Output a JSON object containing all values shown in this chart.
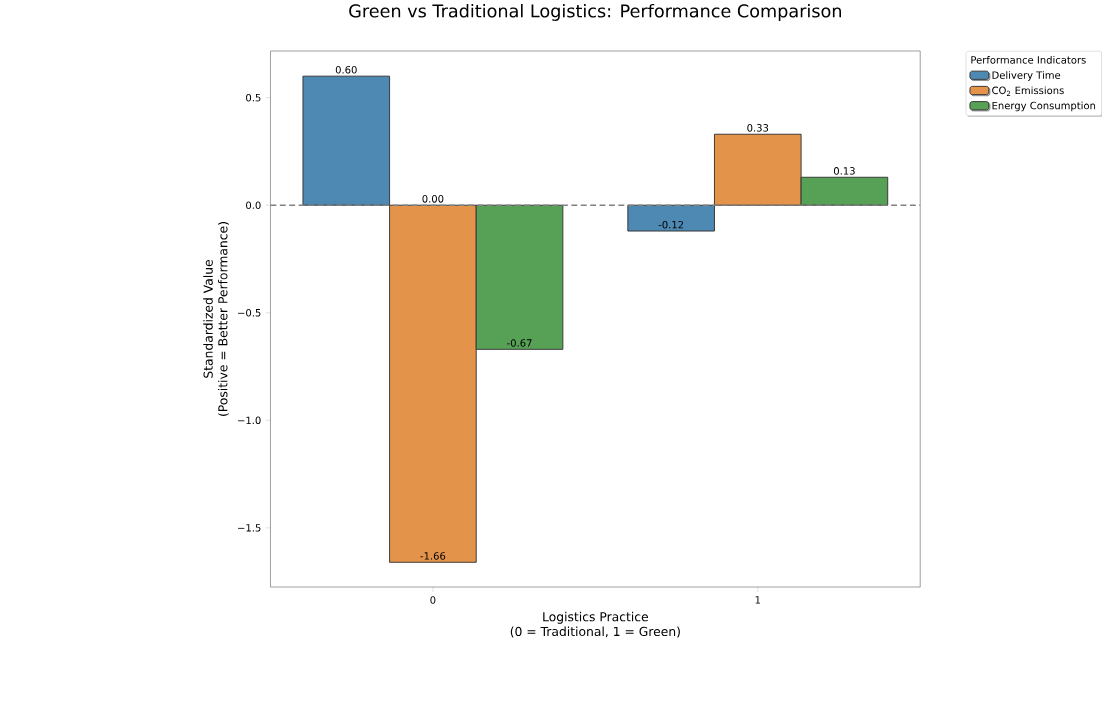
{
  "chart_data": {
    "type": "bar",
    "title": "Green vs Traditional Logistics: Performance Comparison",
    "xlabel": "Logistics Practice\n(0 = Traditional, 1 = Green)",
    "ylabel": "Standardized Value\n(Positive = Better Performance)",
    "legend_title": "Performance Indicators",
    "categories": [
      "0",
      "1"
    ],
    "series": [
      {
        "name": "Delivery Time",
        "color": "#4e89b3",
        "values": [
          0.6,
          -0.12
        ],
        "value_labels": [
          "0.60",
          "-0.12"
        ]
      },
      {
        "name": "CO$_{2}$ Emissions",
        "color": "#e4934b",
        "values": [
          -1.66,
          0.33
        ],
        "value_labels": [
          "-1.66",
          "0.33"
        ]
      },
      {
        "name": "Energy Consumption",
        "color": "#57a156",
        "values": [
          -0.67,
          0.13
        ],
        "value_labels": [
          "-0.67",
          "0.13"
        ]
      }
    ],
    "ylim": [
      -1.775,
      0.717
    ],
    "yticks": [
      {
        "value": -1.5,
        "label": "−1.5"
      },
      {
        "value": -1.0,
        "label": "−1.0"
      },
      {
        "value": -0.5,
        "label": "−0.5"
      },
      {
        "value": 0.0,
        "label": "0.0"
      },
      {
        "value": 0.5,
        "label": "0.5"
      }
    ],
    "ref_lines": [
      {
        "axis": "y",
        "value": 0,
        "color": "#808080",
        "line_style": "dashed"
      }
    ],
    "annotations": [
      {
        "text": "0.00",
        "x": "0",
        "y": 0
      }
    ],
    "legend": "top right",
    "grid": false
  }
}
